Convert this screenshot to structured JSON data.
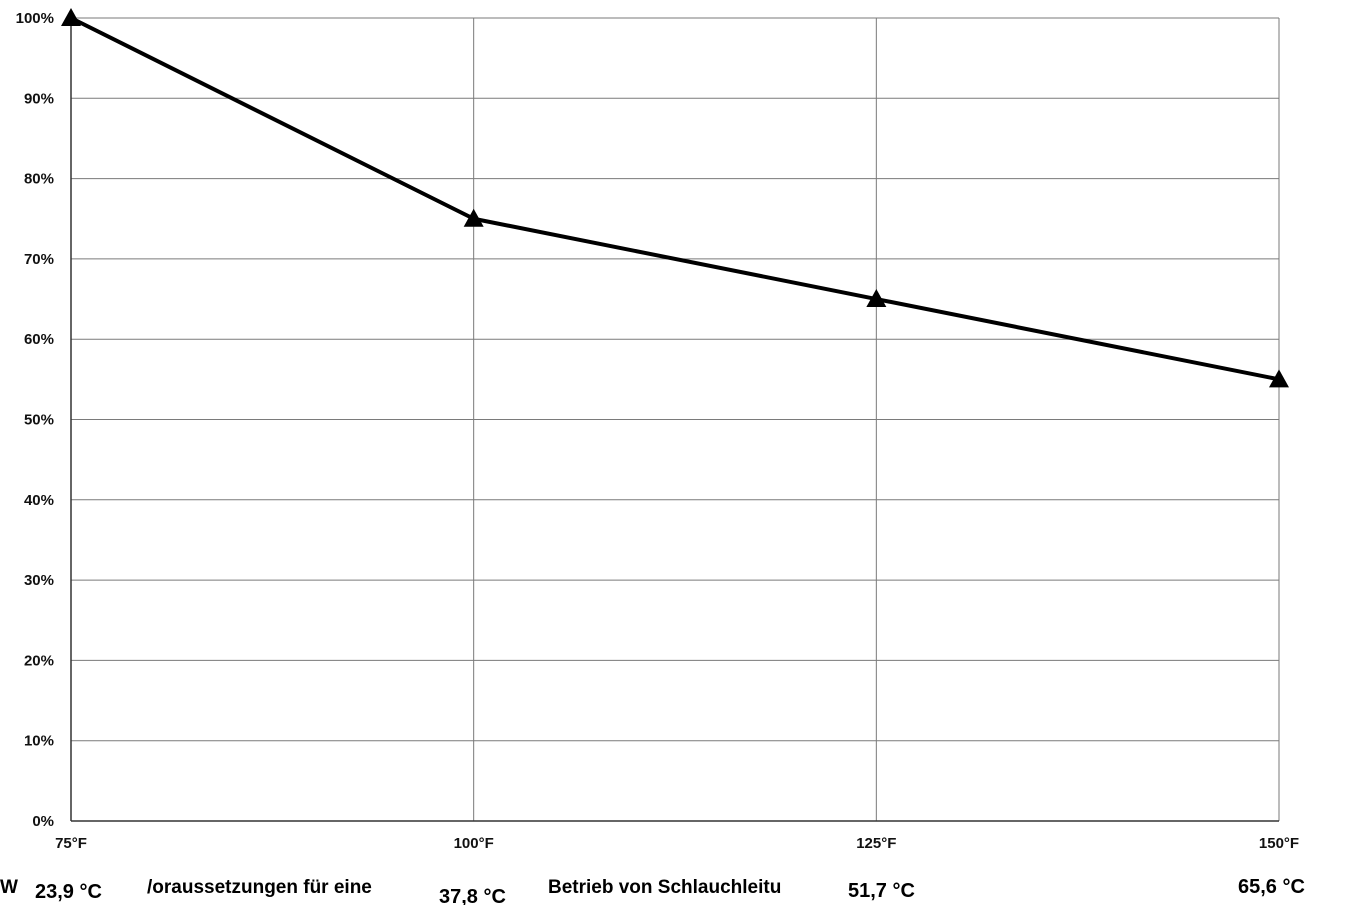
{
  "chart_data": {
    "type": "line",
    "x": [
      "75°F",
      "100°F",
      "125°F",
      "150°F"
    ],
    "x_secondary": [
      "23,9 °C",
      "37,8 °C",
      "51,7 °C",
      "65,6 °C"
    ],
    "series": [
      {
        "values": [
          100,
          75,
          65,
          55
        ]
      }
    ],
    "y_ticks": [
      "0%",
      "10%",
      "20%",
      "30%",
      "40%",
      "50%",
      "60%",
      "70%",
      "80%",
      "90%",
      "100%"
    ],
    "ylim": [
      0,
      100
    ],
    "grid": true,
    "marker": "triangle",
    "background_text": [
      "W",
      "/oraussetzungen für eine",
      "Betrieb von Schlauchleitu"
    ]
  }
}
